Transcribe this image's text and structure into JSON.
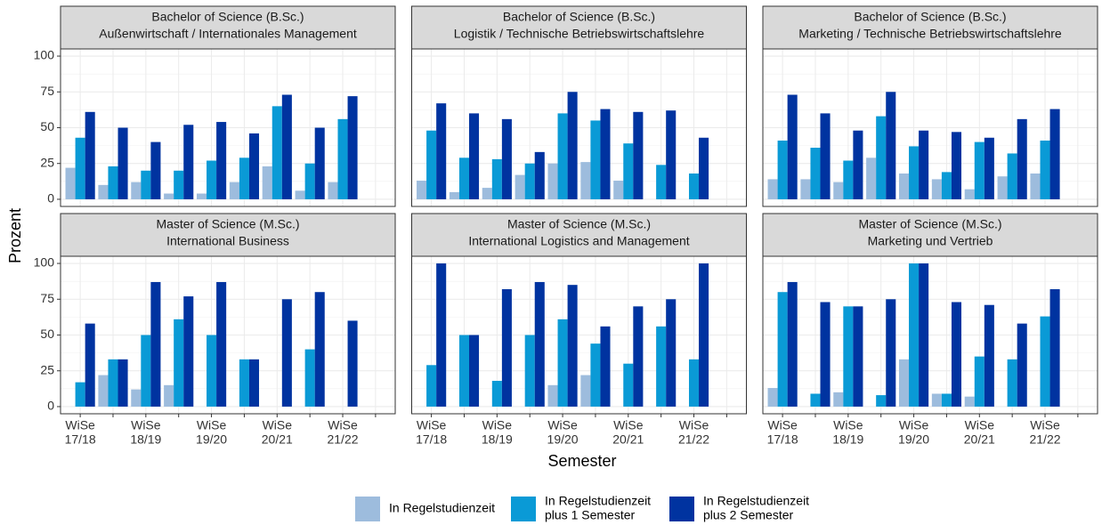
{
  "x_label": "Semester",
  "y_label": "Prozent",
  "chart_data": [
    {
      "type": "bar",
      "title": [
        "Bachelor of Science (B.Sc.)",
        "Außenwirtschaft / Internationales Management"
      ],
      "categories": [
        [
          "WiSe",
          "17/18"
        ],
        null,
        [
          "WiSe",
          "18/19"
        ],
        null,
        [
          "WiSe",
          "19/20"
        ],
        null,
        [
          "WiSe",
          "20/21"
        ],
        null,
        [
          "WiSe",
          "21/22"
        ],
        null
      ],
      "ylim": [
        -5,
        105
      ],
      "yticks": [
        0,
        25,
        50,
        75,
        100
      ],
      "grid": true,
      "series": [
        {
          "name": [
            "In Regelstudienzeit"
          ],
          "color": "#9dbcdd",
          "values": [
            22,
            10,
            12,
            4,
            4,
            12,
            23,
            6,
            12,
            null
          ]
        },
        {
          "name": [
            "In Regelstudienzeit",
            "plus 1 Semester"
          ],
          "color": "#0a9ad6",
          "values": [
            43,
            23,
            20,
            20,
            27,
            29,
            65,
            25,
            56,
            null
          ]
        },
        {
          "name": [
            "In Regelstudienzeit",
            "plus 2 Semester"
          ],
          "color": "#0033a0",
          "values": [
            61,
            50,
            40,
            52,
            54,
            46,
            73,
            50,
            72,
            null
          ]
        }
      ]
    },
    {
      "type": "bar",
      "title": [
        "Bachelor of Science (B.Sc.)",
        "Logistik / Technische Betriebswirtschaftslehre"
      ],
      "categories": [
        [
          "WiSe",
          "17/18"
        ],
        null,
        [
          "WiSe",
          "18/19"
        ],
        null,
        [
          "WiSe",
          "19/20"
        ],
        null,
        [
          "WiSe",
          "20/21"
        ],
        null,
        [
          "WiSe",
          "21/22"
        ],
        null
      ],
      "ylim": [
        -5,
        105
      ],
      "yticks": [
        0,
        25,
        50,
        75,
        100
      ],
      "grid": true,
      "series": [
        {
          "name": [
            "In Regelstudienzeit"
          ],
          "color": "#9dbcdd",
          "values": [
            13,
            5,
            8,
            17,
            25,
            26,
            13,
            null,
            null,
            null
          ]
        },
        {
          "name": [
            "In Regelstudienzeit",
            "plus 1 Semester"
          ],
          "color": "#0a9ad6",
          "values": [
            48,
            29,
            28,
            25,
            60,
            55,
            39,
            24,
            18,
            null
          ]
        },
        {
          "name": [
            "In Regelstudienzeit",
            "plus 2 Semester"
          ],
          "color": "#0033a0",
          "values": [
            67,
            60,
            56,
            33,
            75,
            63,
            61,
            62,
            43,
            null
          ]
        }
      ]
    },
    {
      "type": "bar",
      "title": [
        "Bachelor of Science (B.Sc.)",
        "Marketing / Technische Betriebswirtschaftslehre"
      ],
      "categories": [
        [
          "WiSe",
          "17/18"
        ],
        null,
        [
          "WiSe",
          "18/19"
        ],
        null,
        [
          "WiSe",
          "19/20"
        ],
        null,
        [
          "WiSe",
          "20/21"
        ],
        null,
        [
          "WiSe",
          "21/22"
        ],
        null
      ],
      "ylim": [
        -5,
        105
      ],
      "yticks": [
        0,
        25,
        50,
        75,
        100
      ],
      "grid": true,
      "series": [
        {
          "name": [
            "In Regelstudienzeit"
          ],
          "color": "#9dbcdd",
          "values": [
            14,
            14,
            12,
            29,
            18,
            14,
            7,
            16,
            18,
            null
          ]
        },
        {
          "name": [
            "In Regelstudienzeit",
            "plus 1 Semester"
          ],
          "color": "#0a9ad6",
          "values": [
            41,
            36,
            27,
            58,
            37,
            19,
            40,
            32,
            41,
            null
          ]
        },
        {
          "name": [
            "In Regelstudienzeit",
            "plus 2 Semester"
          ],
          "color": "#0033a0",
          "values": [
            73,
            60,
            48,
            75,
            48,
            47,
            43,
            56,
            63,
            null
          ]
        }
      ]
    },
    {
      "type": "bar",
      "title": [
        "Master of Science (M.Sc.)",
        "International Business"
      ],
      "categories": [
        [
          "WiSe",
          "17/18"
        ],
        null,
        [
          "WiSe",
          "18/19"
        ],
        null,
        [
          "WiSe",
          "19/20"
        ],
        null,
        [
          "WiSe",
          "20/21"
        ],
        null,
        [
          "WiSe",
          "21/22"
        ],
        null
      ],
      "ylim": [
        -5,
        105
      ],
      "yticks": [
        0,
        25,
        50,
        75,
        100
      ],
      "grid": true,
      "series": [
        {
          "name": [
            "In Regelstudienzeit"
          ],
          "color": "#9dbcdd",
          "values": [
            null,
            22,
            12,
            15,
            null,
            null,
            null,
            null,
            null,
            null
          ]
        },
        {
          "name": [
            "In Regelstudienzeit",
            "plus 1 Semester"
          ],
          "color": "#0a9ad6",
          "values": [
            17,
            33,
            50,
            61,
            50,
            33,
            null,
            40,
            null,
            null
          ]
        },
        {
          "name": [
            "In Regelstudienzeit",
            "plus 2 Semester"
          ],
          "color": "#0033a0",
          "values": [
            58,
            33,
            87,
            77,
            87,
            33,
            75,
            80,
            60,
            null
          ]
        }
      ]
    },
    {
      "type": "bar",
      "title": [
        "Master of Science (M.Sc.)",
        "International Logistics and Management"
      ],
      "categories": [
        [
          "WiSe",
          "17/18"
        ],
        null,
        [
          "WiSe",
          "18/19"
        ],
        null,
        [
          "WiSe",
          "19/20"
        ],
        null,
        [
          "WiSe",
          "20/21"
        ],
        null,
        [
          "WiSe",
          "21/22"
        ],
        null
      ],
      "ylim": [
        -5,
        105
      ],
      "yticks": [
        0,
        25,
        50,
        75,
        100
      ],
      "grid": true,
      "series": [
        {
          "name": [
            "In Regelstudienzeit"
          ],
          "color": "#9dbcdd",
          "values": [
            null,
            null,
            null,
            null,
            15,
            22,
            null,
            null,
            null,
            null
          ]
        },
        {
          "name": [
            "In Regelstudienzeit",
            "plus 1 Semester"
          ],
          "color": "#0a9ad6",
          "values": [
            29,
            50,
            18,
            50,
            61,
            44,
            30,
            56,
            33,
            null
          ]
        },
        {
          "name": [
            "In Regelstudienzeit",
            "plus 2 Semester"
          ],
          "color": "#0033a0",
          "values": [
            100,
            50,
            82,
            87,
            85,
            56,
            70,
            75,
            100,
            null
          ]
        }
      ]
    },
    {
      "type": "bar",
      "title": [
        "Master of Science (M.Sc.)",
        "Marketing und Vertrieb"
      ],
      "categories": [
        [
          "WiSe",
          "17/18"
        ],
        null,
        [
          "WiSe",
          "18/19"
        ],
        null,
        [
          "WiSe",
          "19/20"
        ],
        null,
        [
          "WiSe",
          "20/21"
        ],
        null,
        [
          "WiSe",
          "21/22"
        ],
        null
      ],
      "ylim": [
        -5,
        105
      ],
      "yticks": [
        0,
        25,
        50,
        75,
        100
      ],
      "grid": true,
      "series": [
        {
          "name": [
            "In Regelstudienzeit"
          ],
          "color": "#9dbcdd",
          "values": [
            13,
            null,
            10,
            null,
            33,
            9,
            7,
            null,
            null,
            null
          ]
        },
        {
          "name": [
            "In Regelstudienzeit",
            "plus 1 Semester"
          ],
          "color": "#0a9ad6",
          "values": [
            80,
            9,
            70,
            8,
            100,
            9,
            35,
            33,
            63,
            null
          ]
        },
        {
          "name": [
            "In Regelstudienzeit",
            "plus 2 Semester"
          ],
          "color": "#0033a0",
          "values": [
            87,
            73,
            70,
            75,
            100,
            73,
            71,
            58,
            82,
            null
          ]
        }
      ]
    }
  ]
}
